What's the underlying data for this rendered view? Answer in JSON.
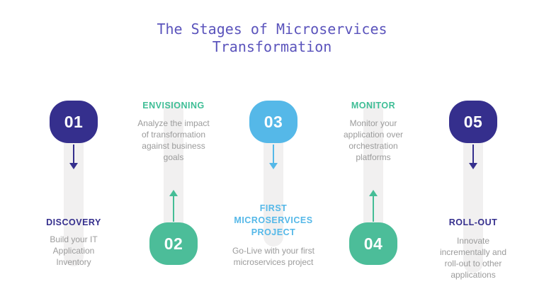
{
  "title": "The Stages of Microservices Transformation",
  "colors": {
    "title": "#5B54BC",
    "indigo": "#352F8D",
    "green_bubble": "#4CBD99",
    "green_heading": "#3FBE96",
    "blue": "#55B8E8",
    "description_text": "#9B9B9B",
    "track": "#F1F0F0",
    "background": "#FFFFFF",
    "bubble_number_text": "#FFFFFF"
  },
  "stages": [
    {
      "number": "01",
      "heading": "DISCOVERY",
      "body": "Build your IT Application Inventory",
      "direction": "down",
      "accent": "indigo"
    },
    {
      "number": "02",
      "heading": "ENVISIONING",
      "body": "Analyze the impact of transformation against business goals",
      "direction": "up",
      "accent": "green"
    },
    {
      "number": "03",
      "heading": "FIRST MICROSERVICES PROJECT",
      "body": "Go-Live with your first microservices project",
      "direction": "down",
      "accent": "blue"
    },
    {
      "number": "04",
      "heading": "MONITOR",
      "body": "Monitor your application over orchestration platforms",
      "direction": "up",
      "accent": "green"
    },
    {
      "number": "05",
      "heading": "ROLL-OUT",
      "body": "Innovate incrementally and roll-out to other applications",
      "direction": "down",
      "accent": "indigo"
    }
  ]
}
